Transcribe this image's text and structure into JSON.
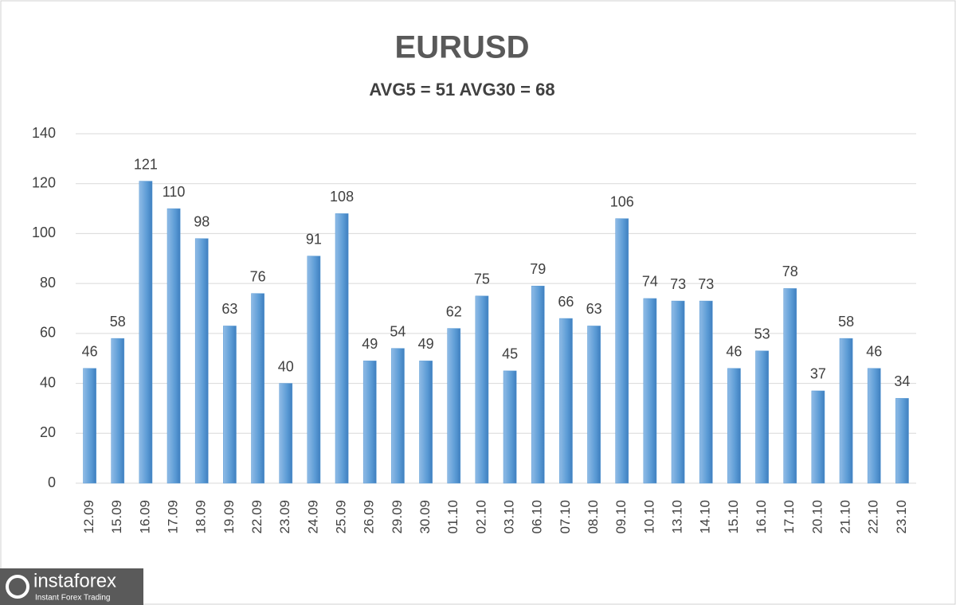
{
  "chart_data": {
    "type": "bar",
    "title": "EURUSD",
    "subtitle": "AVG5 = 51 AVG30 = 68",
    "categories": [
      "12.09",
      "15.09",
      "16.09",
      "17.09",
      "18.09",
      "19.09",
      "22.09",
      "23.09",
      "24.09",
      "25.09",
      "26.09",
      "29.09",
      "30.09",
      "01.10",
      "02.10",
      "03.10",
      "06.10",
      "07.10",
      "08.10",
      "09.10",
      "10.10",
      "13.10",
      "14.10",
      "15.10",
      "16.10",
      "17.10",
      "20.10",
      "21.10",
      "22.10",
      "23.10"
    ],
    "values": [
      46,
      58,
      121,
      110,
      98,
      63,
      76,
      40,
      91,
      108,
      49,
      54,
      49,
      62,
      75,
      45,
      79,
      66,
      63,
      106,
      74,
      73,
      73,
      46,
      53,
      78,
      37,
      58,
      46,
      34
    ],
    "color": "#5b9bd5",
    "ylim": [
      0,
      140
    ],
    "yticks": [
      0,
      20,
      40,
      60,
      80,
      100,
      120,
      140
    ],
    "grid": true
  },
  "logo": {
    "name": "instaforex",
    "tagline": "Instant Forex Trading"
  }
}
